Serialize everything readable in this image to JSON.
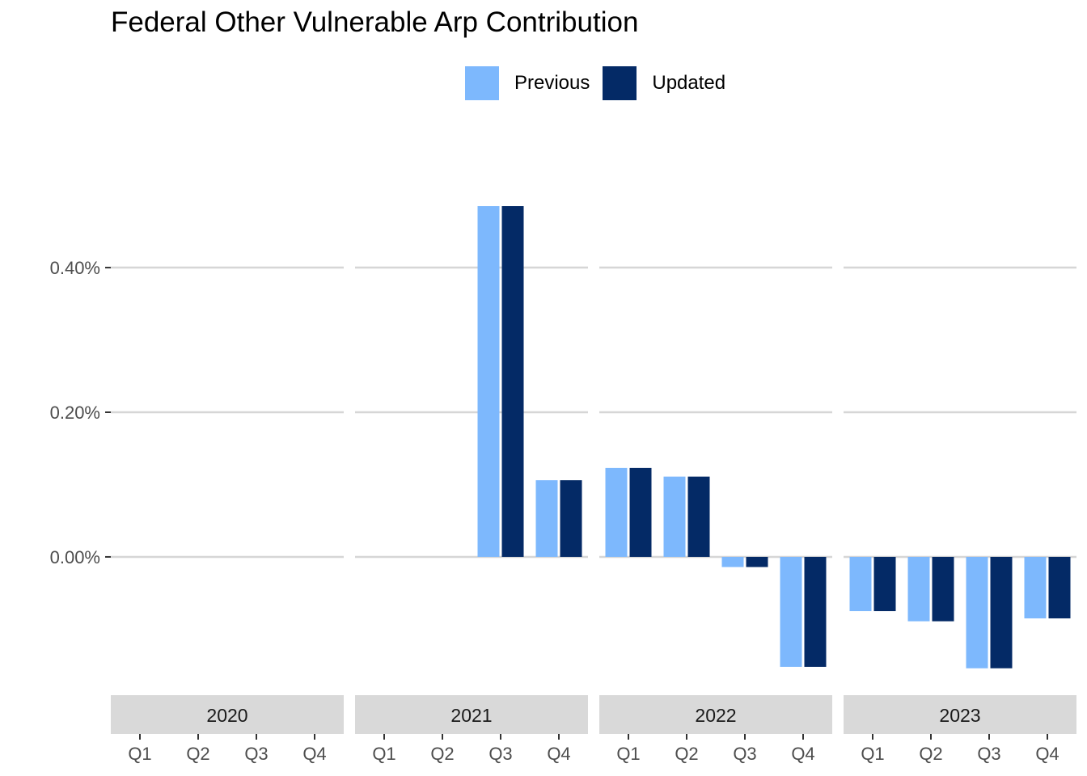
{
  "chart_data": {
    "type": "bar",
    "title": "Federal Other Vulnerable Arp Contribution",
    "xlabel": "",
    "ylabel": "",
    "ylim": [
      -0.0018,
      0.0058
    ],
    "y_ticks": [
      0,
      0.002,
      0.004
    ],
    "y_tick_labels": [
      "0.00%",
      "0.20%",
      "0.40%"
    ],
    "grid": true,
    "legend_position": "top",
    "facets": [
      "2020",
      "2021",
      "2022",
      "2023"
    ],
    "categories": [
      "Q1",
      "Q2",
      "Q3",
      "Q4"
    ],
    "series": [
      {
        "name": "Previous",
        "color": "#7db8fd",
        "values": [
          [
            0,
            0,
            0,
            0
          ],
          [
            0,
            0,
            0.00485,
            0.00106
          ],
          [
            0.00123,
            0.00111,
            -0.00014,
            -0.00152
          ],
          [
            -0.00075,
            -0.00089,
            -0.00154,
            -0.00085
          ]
        ]
      },
      {
        "name": "Updated",
        "color": "#042a66",
        "values": [
          [
            0,
            0,
            0,
            0
          ],
          [
            0,
            0,
            0.00485,
            0.00106
          ],
          [
            0.00123,
            0.00111,
            -0.00014,
            -0.00152
          ],
          [
            -0.00075,
            -0.00089,
            -0.00154,
            -0.00085
          ]
        ]
      }
    ]
  }
}
